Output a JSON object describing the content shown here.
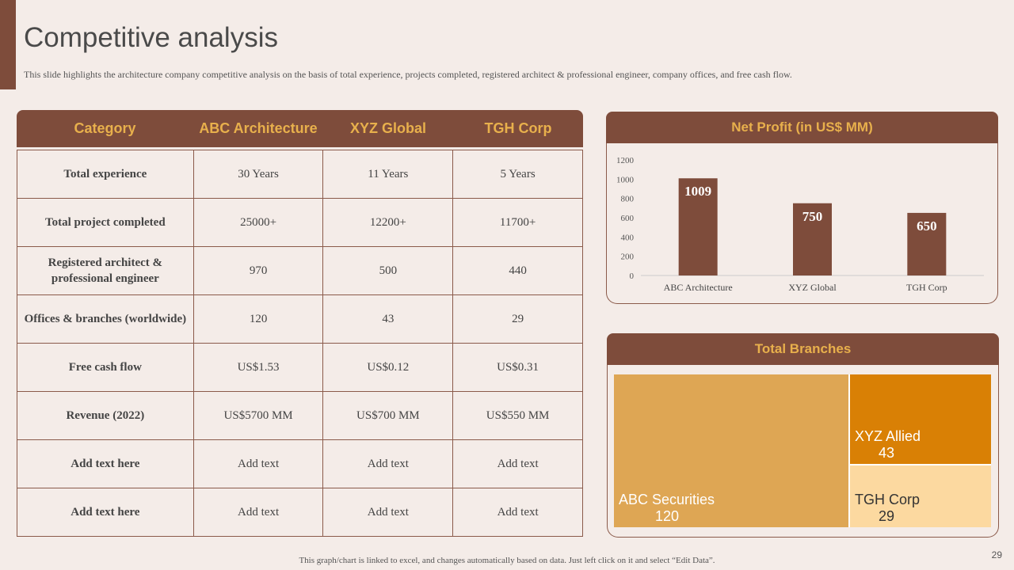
{
  "title": "Competitive analysis",
  "subtitle": "This slide highlights the architecture company competitive analysis on the basis of total experience,  projects completed, registered architect & professional engineer, company offices, and free cash flow.",
  "table": {
    "headers": [
      "Category",
      "ABC Architecture",
      "XYZ Global",
      "TGH Corp"
    ],
    "rows": [
      [
        "Total experience",
        "30 Years",
        "11 Years",
        "5 Years"
      ],
      [
        "Total project  completed",
        "25000+",
        "12200+",
        "11700+"
      ],
      [
        "Registered architect & professional engineer",
        "970",
        "500",
        "440"
      ],
      [
        "Offices & branches (worldwide)",
        "120",
        "43",
        "29"
      ],
      [
        "Free cash flow",
        "US$1.53",
        "US$0.12",
        "US$0.31"
      ],
      [
        "Revenue (2022)",
        "US$5700 MM",
        "US$700 MM",
        "US$550 MM"
      ],
      [
        "Add  text here",
        "Add text",
        "Add text",
        "Add text"
      ],
      [
        "Add  text here",
        "Add text",
        "Add text",
        "Add text"
      ]
    ]
  },
  "chart_data": [
    {
      "type": "bar",
      "title": "Net Profit (in US$ MM)",
      "categories": [
        "ABC Architecture",
        "XYZ Global",
        "TGH Corp"
      ],
      "values": [
        1009,
        750,
        650
      ],
      "ylim": [
        0,
        1200
      ],
      "yticks": [
        0,
        200,
        400,
        600,
        800,
        1000,
        1200
      ],
      "bar_color": "#7E4C3B",
      "data_labels": true
    },
    {
      "type": "treemap",
      "title": "Total Branches",
      "items": [
        {
          "name": "ABC Securities",
          "value": 120,
          "color": "#DEA654"
        },
        {
          "name": "XYZ Allied",
          "value": 43,
          "color": "#D98005"
        },
        {
          "name": "TGH Corp",
          "value": 29,
          "color": "#FCD9A0"
        }
      ]
    }
  ],
  "footer": "This graph/chart is linked to excel,  and changes  automatically based on data. Just left click on it and select “Edit Data”.",
  "page_number": "29",
  "colors": {
    "brown": "#7E4C3B",
    "gold": "#E8B04C",
    "background": "#F4ECE8"
  }
}
